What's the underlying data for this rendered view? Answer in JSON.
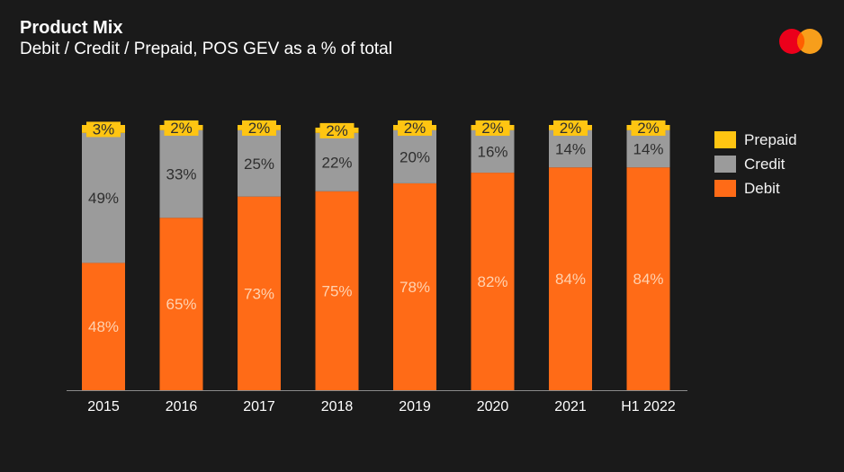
{
  "header": {
    "title": "Product Mix",
    "subtitle": "Debit / Credit / Prepaid, POS GEV as a % of total"
  },
  "logo": {
    "icon": "mastercard-logo-icon",
    "colors": [
      "#eb001b",
      "#f79e1b",
      "#ff5f00"
    ]
  },
  "colors": {
    "debit": "#ff6b17",
    "credit": "#9b9b9b",
    "prepaid": "#ffc512",
    "background": "#1a1a1a",
    "axis": "#8a8a8a"
  },
  "chart_data": {
    "type": "bar",
    "stacked": true,
    "title": "Product Mix",
    "subtitle": "Debit / Credit / Prepaid, POS GEV as a % of total",
    "categories": [
      "2015",
      "2016",
      "2017",
      "2018",
      "2019",
      "2020",
      "2021",
      "H1 2022"
    ],
    "series": [
      {
        "name": "Debit",
        "values": [
          48,
          65,
          73,
          75,
          78,
          82,
          84,
          84
        ],
        "labels": [
          "48%",
          "65%",
          "73%",
          "75%",
          "78%",
          "82%",
          "84%",
          "84%"
        ]
      },
      {
        "name": "Credit",
        "values": [
          49,
          33,
          25,
          22,
          20,
          16,
          14,
          14
        ],
        "labels": [
          "49%",
          "33%",
          "25%",
          "22%",
          "20%",
          "16%",
          "14%",
          "14%"
        ]
      },
      {
        "name": "Prepaid",
        "values": [
          3,
          2,
          2,
          2,
          2,
          2,
          2,
          2
        ],
        "labels": [
          "3%",
          "2%",
          "2%",
          "2%",
          "2%",
          "2%",
          "2%",
          "2%"
        ]
      }
    ],
    "legend": [
      "Prepaid",
      "Credit",
      "Debit"
    ],
    "legend_position": "right",
    "ylim": [
      0,
      100
    ],
    "xlabel": "",
    "ylabel": "",
    "grid": false
  }
}
